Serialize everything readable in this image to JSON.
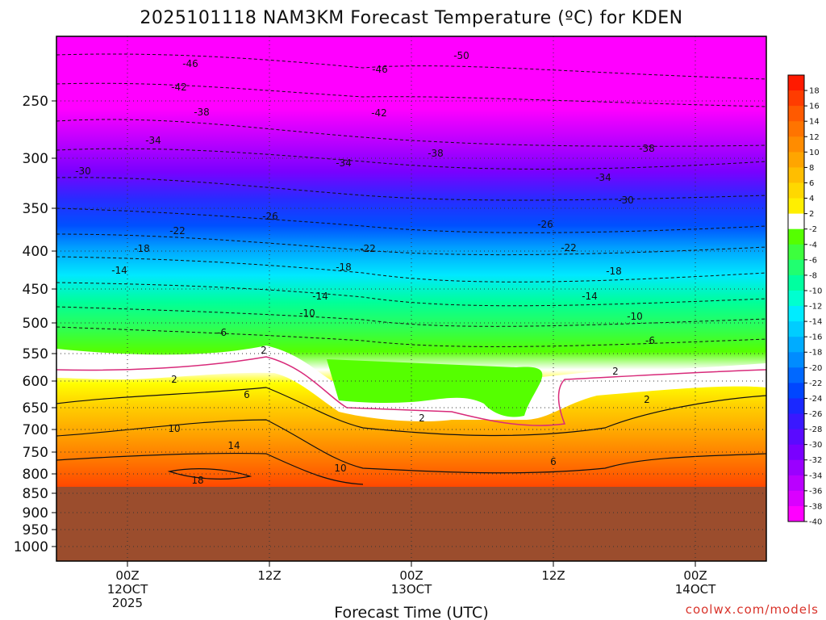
{
  "chart_data": {
    "type": "heatmap",
    "title": "2025101118 NAM3KM Forecast Temperature (ºC) for KDEN",
    "xlabel": "Forecast Time (UTC)",
    "ylabel": "",
    "credit": "coolwx.com/models",
    "y_ticks": [
      "250",
      "300",
      "350",
      "400",
      "450",
      "500",
      "550",
      "600",
      "650",
      "700",
      "750",
      "800",
      "850",
      "900",
      "950",
      "1000"
    ],
    "x_ticks": [
      {
        "hour": "00Z",
        "date": "12OCT",
        "year": "2025"
      },
      {
        "hour": "12Z",
        "date": "",
        "year": ""
      },
      {
        "hour": "00Z",
        "date": "13OCT",
        "year": ""
      },
      {
        "hour": "12Z",
        "date": "",
        "year": ""
      },
      {
        "hour": "00Z",
        "date": "14OCT",
        "year": ""
      }
    ],
    "colorbar_ticks": [
      "18",
      "16",
      "14",
      "12",
      "10",
      "8",
      "6",
      "4",
      "2",
      "-2",
      "-4",
      "-6",
      "-8",
      "-10",
      "-12",
      "-14",
      "-16",
      "-18",
      "-20",
      "-22",
      "-24",
      "-26",
      "-28",
      "-30",
      "-32",
      "-34",
      "-36",
      "-38",
      "-40"
    ],
    "contour_labels": [
      "-50",
      "-46",
      "-46",
      "-42",
      "-42",
      "-38",
      "-38",
      "-38",
      "-34",
      "-34",
      "-34",
      "-30",
      "-30",
      "-26",
      "-26",
      "-22",
      "-22",
      "-22",
      "-18",
      "-18",
      "-18",
      "-14",
      "-14",
      "-14",
      "-10",
      "-10",
      "-6",
      "-6",
      "2",
      "2",
      "2",
      "2",
      "2",
      "6",
      "6",
      "10",
      "10",
      "14",
      "18"
    ],
    "colors": {
      "ground": "#9b4d2d",
      "freezing_line": "#d82a7a",
      "credit": "#d9342b"
    }
  }
}
